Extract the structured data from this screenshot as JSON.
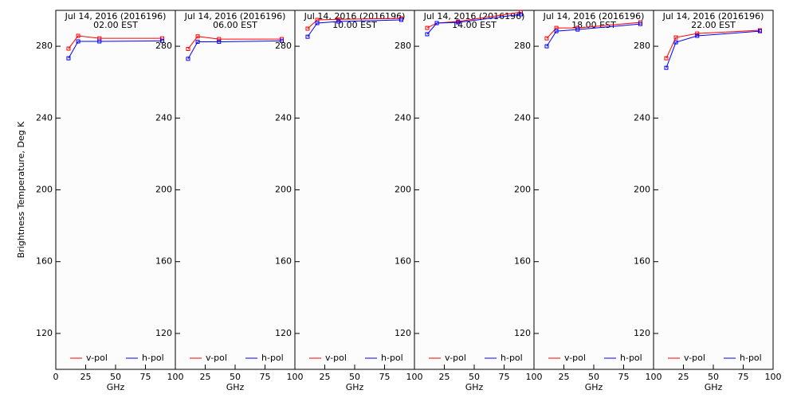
{
  "chart_data": [
    {
      "type": "line",
      "title": "Jul 14, 2016 (2016196)",
      "subtitle": "02.00 EST",
      "ylabel": "Brightness Temperature, Deg K",
      "xlabel": "GHz",
      "x": [
        10.65,
        18.7,
        36.5,
        89
      ],
      "series": [
        {
          "name": "v-pol",
          "color": "#ff0000",
          "values": [
            278.7,
            285.8,
            284.4,
            284.4
          ]
        },
        {
          "name": "h-pol",
          "color": "#0000ff",
          "values": [
            273.3,
            282.7,
            282.7,
            283
          ]
        }
      ],
      "xlim": [
        0,
        100
      ],
      "xticks": [
        0,
        25,
        50,
        75,
        100
      ],
      "ylim": [
        100,
        300
      ],
      "yticks": [
        120,
        160,
        200,
        240,
        280
      ]
    },
    {
      "type": "line",
      "title": "Jul 14, 2016 (2016196)",
      "subtitle": "06.00 EST",
      "xlabel": "GHz",
      "x": [
        10.65,
        18.7,
        36.5,
        89
      ],
      "series": [
        {
          "name": "v-pol",
          "color": "#ff0000",
          "values": [
            278.5,
            285.5,
            284,
            284
          ]
        },
        {
          "name": "h-pol",
          "color": "#0000ff",
          "values": [
            273,
            282.5,
            282.5,
            283
          ]
        }
      ],
      "xlim": [
        0,
        100
      ],
      "xticks": [
        25,
        50,
        75,
        100
      ],
      "ylim": [
        100,
        300
      ],
      "yticks": [
        120,
        160,
        200,
        240,
        280
      ]
    },
    {
      "type": "line",
      "title": "Jul 14, 2016 (2016196)",
      "subtitle": "10.00 EST",
      "xlabel": "GHz",
      "x": [
        10.65,
        18.7,
        36.5,
        89
      ],
      "series": [
        {
          "name": "v-pol",
          "color": "#ff0000",
          "values": [
            289.8,
            294.7,
            295,
            295.5
          ]
        },
        {
          "name": "h-pol",
          "color": "#0000ff",
          "values": [
            285.3,
            292.9,
            293.8,
            294.7
          ]
        }
      ],
      "xlim": [
        0,
        100
      ],
      "xticks": [
        25,
        50,
        75,
        100
      ],
      "ylim": [
        100,
        300
      ],
      "yticks": [
        120,
        160,
        200,
        240,
        280
      ]
    },
    {
      "type": "line",
      "title": "Jul 14, 2016 (2016196)",
      "subtitle": "14.00 EST",
      "xlabel": "GHz",
      "x": [
        10.65,
        18.7,
        36.5,
        89
      ],
      "series": [
        {
          "name": "v-pol",
          "color": "#ff0000",
          "values": [
            290.2,
            292.9,
            293.8,
            299
          ]
        },
        {
          "name": "h-pol",
          "color": "#0000ff",
          "values": [
            286.7,
            292.9,
            293.3,
            297.8
          ]
        }
      ],
      "xlim": [
        0,
        100
      ],
      "xticks": [
        25,
        50,
        75,
        100
      ],
      "ylim": [
        100,
        300
      ],
      "yticks": [
        120,
        160,
        200,
        240,
        280
      ]
    },
    {
      "type": "line",
      "title": "Jul 14, 2016 (2016196)",
      "subtitle": "18.00 EST",
      "xlabel": "GHz",
      "x": [
        10.65,
        18.7,
        36.5,
        89
      ],
      "series": [
        {
          "name": "v-pol",
          "color": "#ff0000",
          "values": [
            284.4,
            290.2,
            290.2,
            293.3
          ]
        },
        {
          "name": "h-pol",
          "color": "#0000ff",
          "values": [
            280,
            288.4,
            289.3,
            292.4
          ]
        }
      ],
      "xlim": [
        0,
        100
      ],
      "xticks": [
        25,
        50,
        75,
        100
      ],
      "ylim": [
        100,
        300
      ],
      "yticks": [
        120,
        160,
        200,
        240,
        280
      ]
    },
    {
      "type": "line",
      "title": "Jul 14, 2016 (2016196)",
      "subtitle": "22.00 EST",
      "xlabel": "GHz",
      "x": [
        10.65,
        18.7,
        36.5,
        89
      ],
      "series": [
        {
          "name": "v-pol",
          "color": "#ff0000",
          "values": [
            273.3,
            284.9,
            287.1,
            288.9
          ]
        },
        {
          "name": "h-pol",
          "color": "#0000ff",
          "values": [
            268,
            282.2,
            285.8,
            288.4
          ]
        }
      ],
      "xlim": [
        0,
        100
      ],
      "xticks": [
        25,
        50,
        75,
        100
      ],
      "ylim": [
        100,
        300
      ],
      "yticks": [
        120,
        160,
        200,
        240,
        280
      ]
    }
  ]
}
